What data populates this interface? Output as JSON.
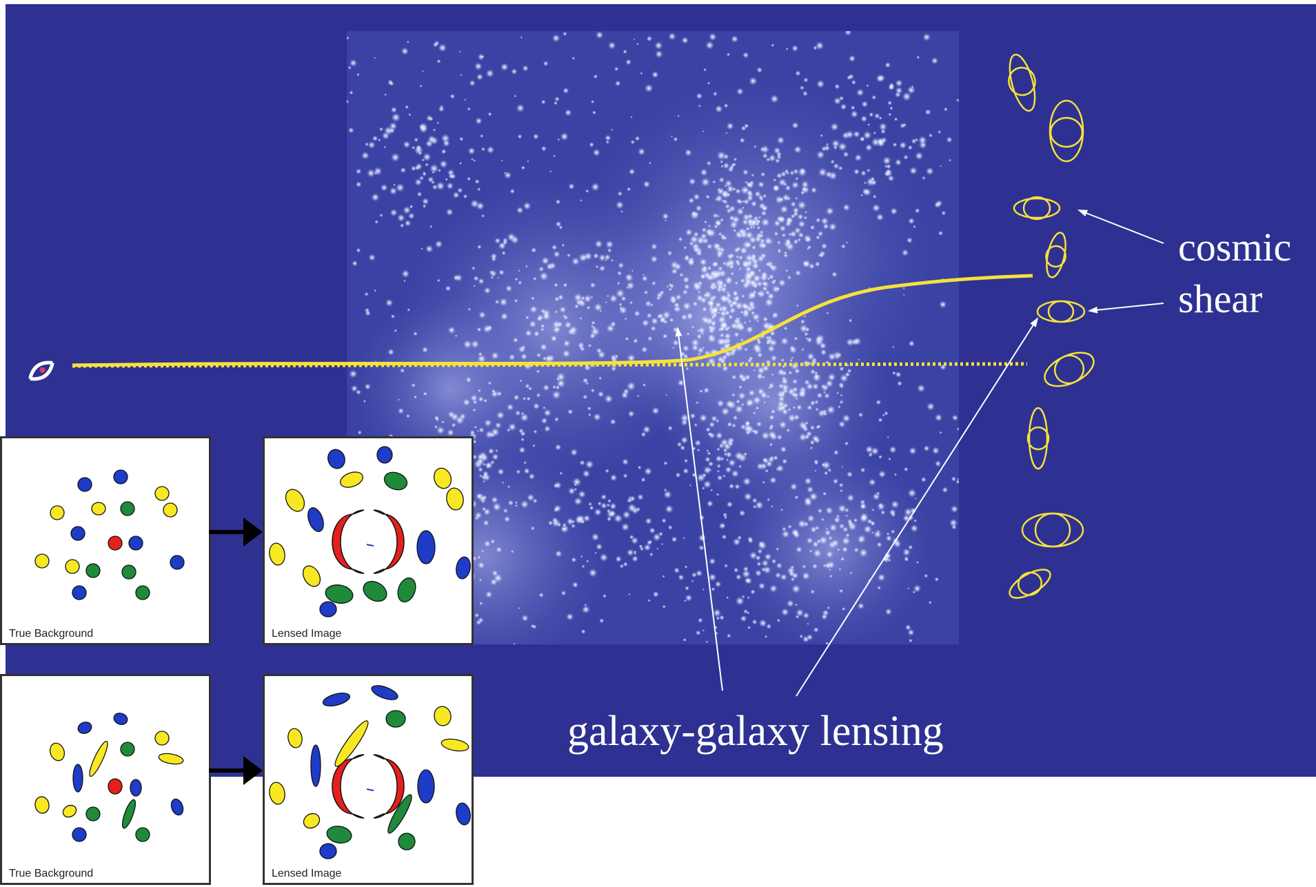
{
  "labels": {
    "cosmic_line1": "cosmic",
    "cosmic_line2": "shear",
    "galaxy_lensing": "galaxy-galaxy lensing"
  },
  "panels": [
    {
      "label": "True Background"
    },
    {
      "label": "Lensed Image"
    },
    {
      "label": "True Background"
    },
    {
      "label": "Lensed Image"
    }
  ],
  "colors": {
    "slide_background": "#2e3192",
    "light_path": "#f5e23a",
    "label_text": "#ffffff",
    "galaxy_yellow": "#f7e823",
    "galaxy_blue": "#1e3cc8",
    "galaxy_green": "#1f8a3a",
    "galaxy_red": "#e3201b"
  },
  "icons": {
    "observer": "eye-icon"
  }
}
